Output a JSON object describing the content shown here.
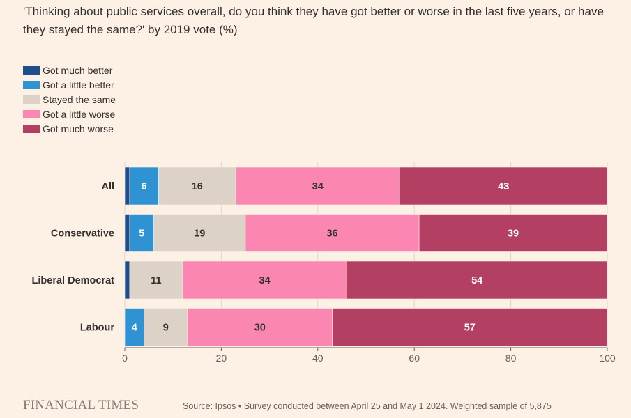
{
  "header": {
    "title": "'Thinking about public services overall, do you think they have got better or worse in the last five years, or have they stayed the same?' by 2019 vote (%)"
  },
  "colors": {
    "background": "#fdf1e5",
    "much_better": "#1f4d8c",
    "little_better": "#2e92d3",
    "same": "#ddd2c7",
    "little_worse": "#fb86b1",
    "much_worse": "#b34063",
    "grid": "#e0d5cb",
    "axis": "#66605c"
  },
  "chart_data": {
    "type": "bar",
    "orientation": "horizontal",
    "stacked": true,
    "title": "'Thinking about public services overall, do you think they have got better or worse in the last five years, or have they stayed the same?' by 2019 vote (%)",
    "xlabel": "",
    "ylabel": "",
    "xlim": [
      0,
      100
    ],
    "xticks": [
      0,
      20,
      40,
      60,
      80,
      100
    ],
    "grid": true,
    "legend_position": "top-left",
    "categories": [
      "All",
      "Conservative",
      "Liberal Democrat",
      "Labour"
    ],
    "series": [
      {
        "name": "Got much better",
        "color": "#1f4d8c",
        "values": [
          1,
          1,
          1,
          0
        ],
        "labels": [
          "",
          "",
          "",
          ""
        ]
      },
      {
        "name": "Got a little better",
        "color": "#2e92d3",
        "values": [
          6,
          5,
          0,
          4
        ],
        "labels": [
          "6",
          "5",
          "",
          "4"
        ]
      },
      {
        "name": "Stayed the same",
        "color": "#ddd2c7",
        "values": [
          16,
          19,
          11,
          9
        ],
        "labels": [
          "16",
          "19",
          "11",
          "9"
        ]
      },
      {
        "name": "Got a little worse",
        "color": "#fb86b1",
        "values": [
          34,
          36,
          34,
          30
        ],
        "labels": [
          "34",
          "36",
          "34",
          "30"
        ]
      },
      {
        "name": "Got much worse",
        "color": "#b34063",
        "values": [
          43,
          39,
          54,
          57
        ],
        "labels": [
          "43",
          "39",
          "54",
          "57"
        ]
      }
    ]
  },
  "footer": {
    "brand": "FINANCIAL TIMES",
    "source": "Source: Ipsos • Survey conducted between April 25 and May 1 2024. Weighted sample of 5,875"
  }
}
